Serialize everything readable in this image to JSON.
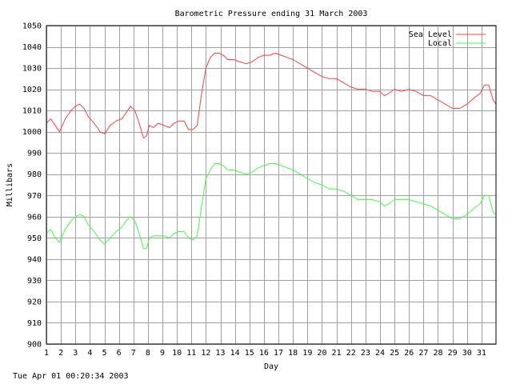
{
  "footer_timestamp": "Tue Apr 01 00:20:34 2003",
  "chart_data": {
    "type": "line",
    "title": "Barometric Pressure ending 31 March 2003",
    "xlabel": "Day",
    "ylabel": "Millibars",
    "xlim": [
      1,
      32
    ],
    "ylim": [
      900,
      1050
    ],
    "x_ticks": [
      1,
      2,
      3,
      4,
      5,
      6,
      7,
      8,
      9,
      10,
      11,
      12,
      13,
      14,
      15,
      16,
      17,
      18,
      19,
      20,
      21,
      22,
      23,
      24,
      25,
      26,
      27,
      28,
      29,
      30,
      31
    ],
    "y_ticks": [
      900,
      910,
      920,
      930,
      940,
      950,
      960,
      970,
      980,
      990,
      1000,
      1010,
      1020,
      1030,
      1040,
      1050
    ],
    "grid": true,
    "legend_position": "top-right",
    "series": [
      {
        "name": "Sea Level",
        "color": "#ff4040",
        "x": [
          1.0,
          1.3,
          1.6,
          1.9,
          2.3,
          2.7,
          3.0,
          3.3,
          3.6,
          3.9,
          4.3,
          4.7,
          5.0,
          5.4,
          5.8,
          6.2,
          6.5,
          6.8,
          7.1,
          7.4,
          7.7,
          7.9,
          8.1,
          8.4,
          8.7,
          9.1,
          9.5,
          9.8,
          10.1,
          10.5,
          10.8,
          11.1,
          11.4,
          11.7,
          12.0,
          12.3,
          12.6,
          12.9,
          13.2,
          13.5,
          13.9,
          14.3,
          14.8,
          15.2,
          15.6,
          16.0,
          16.4,
          16.8,
          17.2,
          17.6,
          18.0,
          18.5,
          19.0,
          19.5,
          20.0,
          20.5,
          21.0,
          21.5,
          22.0,
          22.5,
          23.0,
          23.5,
          24.0,
          24.3,
          24.6,
          25.0,
          25.5,
          26.0,
          26.5,
          27.0,
          27.5,
          28.0,
          28.5,
          29.0,
          29.5,
          30.0,
          30.5,
          30.9,
          31.2,
          31.5,
          31.8,
          32.0
        ],
        "y": [
          1004,
          1006,
          1003,
          1000,
          1006,
          1010,
          1012,
          1013,
          1011,
          1007,
          1004,
          1000,
          999,
          1003,
          1005,
          1006,
          1009,
          1012,
          1010,
          1004,
          997,
          998,
          1003,
          1002,
          1004,
          1003,
          1002,
          1004,
          1005,
          1005,
          1001,
          1001,
          1003,
          1018,
          1030,
          1035,
          1037,
          1037,
          1036,
          1034,
          1034,
          1033,
          1032,
          1033,
          1035,
          1036,
          1036,
          1037,
          1036,
          1035,
          1034,
          1032,
          1030,
          1028,
          1026,
          1025,
          1025,
          1023,
          1021,
          1020,
          1020,
          1019,
          1019,
          1017,
          1018,
          1020,
          1019,
          1020,
          1019,
          1017,
          1017,
          1015,
          1013,
          1011,
          1011,
          1013,
          1016,
          1018,
          1022,
          1022,
          1015,
          1013
        ]
      },
      {
        "name": "Local",
        "color": "#40ff40",
        "x": [
          1.0,
          1.3,
          1.6,
          1.9,
          2.3,
          2.7,
          3.0,
          3.3,
          3.6,
          3.9,
          4.3,
          4.7,
          5.0,
          5.4,
          5.8,
          6.2,
          6.5,
          6.8,
          7.1,
          7.4,
          7.7,
          7.9,
          8.1,
          8.4,
          8.7,
          9.1,
          9.5,
          9.8,
          10.1,
          10.5,
          10.8,
          11.1,
          11.4,
          11.7,
          12.0,
          12.3,
          12.6,
          12.9,
          13.2,
          13.5,
          13.9,
          14.3,
          14.8,
          15.2,
          15.6,
          16.0,
          16.4,
          16.8,
          17.2,
          17.6,
          18.0,
          18.5,
          19.0,
          19.5,
          20.0,
          20.5,
          21.0,
          21.5,
          22.0,
          22.5,
          23.0,
          23.5,
          24.0,
          24.3,
          24.6,
          25.0,
          25.5,
          26.0,
          26.5,
          27.0,
          27.5,
          28.0,
          28.5,
          29.0,
          29.5,
          30.0,
          30.5,
          30.9,
          31.2,
          31.5,
          31.8,
          32.0
        ],
        "y": [
          952,
          954,
          950,
          948,
          954,
          958,
          960,
          961,
          960,
          956,
          953,
          949,
          947,
          950,
          953,
          955,
          958,
          960,
          958,
          952,
          945,
          945,
          950,
          951,
          951,
          951,
          950,
          952,
          953,
          953,
          950,
          949,
          951,
          965,
          978,
          982,
          985,
          985,
          984,
          982,
          982,
          981,
          980,
          981,
          983,
          984,
          985,
          985,
          984,
          983,
          982,
          980,
          978,
          976,
          975,
          973,
          973,
          972,
          970,
          968,
          968,
          968,
          967,
          965,
          966,
          968,
          968,
          968,
          967,
          966,
          965,
          963,
          961,
          959,
          959,
          961,
          964,
          966,
          970,
          970,
          962,
          961
        ]
      }
    ]
  }
}
